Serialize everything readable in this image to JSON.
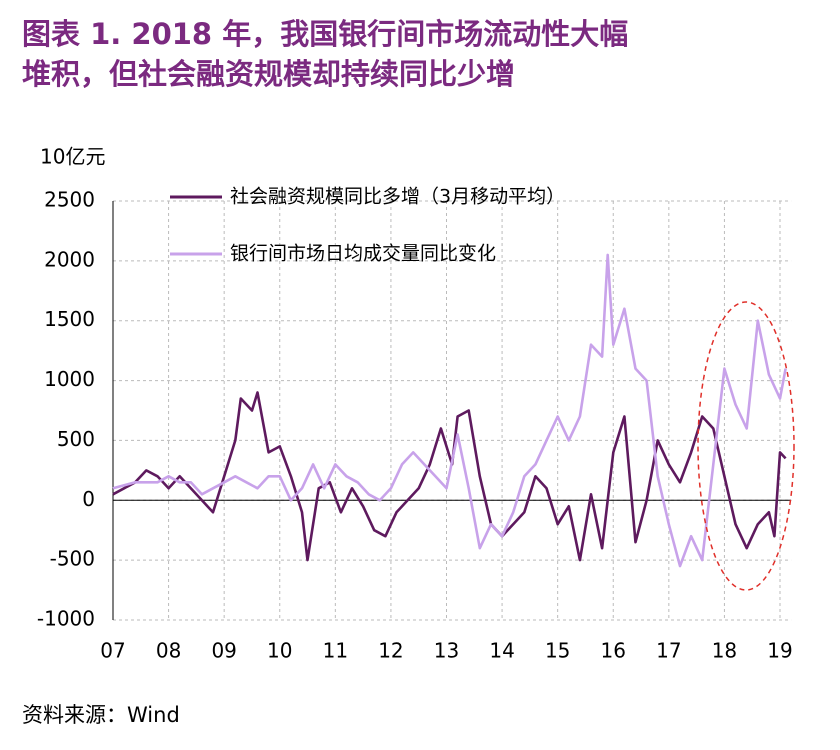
{
  "chart_data": {
    "type": "line",
    "title": [
      "图表 1.  2018 年，我国银行间市场流动性大幅",
      "堆积，但社会融资规模却持续同比少增"
    ],
    "y_unit": "10亿元",
    "source": "资料来源：Wind",
    "grid": true,
    "legend": "top-left",
    "xlim": [
      2007,
      2019.2
    ],
    "xticks": [
      {
        "value": 2007,
        "label": "07"
      },
      {
        "value": 2008,
        "label": "08"
      },
      {
        "value": 2009,
        "label": "09"
      },
      {
        "value": 2010,
        "label": "10"
      },
      {
        "value": 2011,
        "label": "11"
      },
      {
        "value": 2012,
        "label": "12"
      },
      {
        "value": 2013,
        "label": "13"
      },
      {
        "value": 2014,
        "label": "14"
      },
      {
        "value": 2015,
        "label": "15"
      },
      {
        "value": 2016,
        "label": "16"
      },
      {
        "value": 2017,
        "label": "17"
      },
      {
        "value": 2018,
        "label": "18"
      },
      {
        "value": 2019,
        "label": "19"
      }
    ],
    "ylim": [
      -1000,
      2500
    ],
    "yticks": [
      -1000,
      -500,
      0,
      500,
      1000,
      1500,
      2000,
      2500
    ],
    "series": [
      {
        "name": "社会融资规模同比多增（3月移动平均）",
        "color": "#5e1a5e",
        "x": [
          2007.0,
          2007.2,
          2007.4,
          2007.6,
          2007.8,
          2008.0,
          2008.2,
          2008.4,
          2008.6,
          2008.8,
          2009.0,
          2009.2,
          2009.3,
          2009.5,
          2009.6,
          2009.8,
          2010.0,
          2010.2,
          2010.4,
          2010.5,
          2010.7,
          2010.9,
          2011.1,
          2011.3,
          2011.5,
          2011.7,
          2011.9,
          2012.1,
          2012.3,
          2012.5,
          2012.7,
          2012.9,
          2013.1,
          2013.2,
          2013.4,
          2013.6,
          2013.8,
          2014.0,
          2014.2,
          2014.4,
          2014.6,
          2014.8,
          2015.0,
          2015.2,
          2015.4,
          2015.6,
          2015.8,
          2016.0,
          2016.2,
          2016.4,
          2016.6,
          2016.8,
          2017.0,
          2017.2,
          2017.4,
          2017.6,
          2017.8,
          2018.0,
          2018.2,
          2018.4,
          2018.6,
          2018.8,
          2018.9,
          2019.0,
          2019.1
        ],
        "values": [
          50,
          100,
          150,
          250,
          200,
          100,
          200,
          100,
          0,
          -100,
          200,
          500,
          850,
          750,
          900,
          400,
          450,
          200,
          -100,
          -500,
          100,
          150,
          -100,
          100,
          -50,
          -250,
          -300,
          -100,
          0,
          100,
          300,
          600,
          300,
          700,
          750,
          200,
          -200,
          -300,
          -200,
          -100,
          200,
          100,
          -200,
          -50,
          -500,
          50,
          -400,
          400,
          700,
          -350,
          0,
          500,
          300,
          150,
          400,
          700,
          600,
          200,
          -200,
          -400,
          -200,
          -100,
          -300,
          400,
          350
        ]
      },
      {
        "name": "银行间市场日均成交量同比变化",
        "color": "#c8a2ea",
        "x": [
          2007.0,
          2007.4,
          2007.8,
          2008.0,
          2008.2,
          2008.4,
          2008.6,
          2008.8,
          2009.0,
          2009.2,
          2009.4,
          2009.6,
          2009.8,
          2010.0,
          2010.2,
          2010.4,
          2010.6,
          2010.8,
          2011.0,
          2011.2,
          2011.4,
          2011.6,
          2011.8,
          2012.0,
          2012.2,
          2012.4,
          2012.6,
          2012.8,
          2013.0,
          2013.2,
          2013.4,
          2013.6,
          2013.8,
          2014.0,
          2014.2,
          2014.4,
          2014.6,
          2014.8,
          2015.0,
          2015.2,
          2015.4,
          2015.6,
          2015.8,
          2015.9,
          2016.0,
          2016.2,
          2016.4,
          2016.6,
          2016.8,
          2017.0,
          2017.2,
          2017.4,
          2017.6,
          2017.8,
          2018.0,
          2018.2,
          2018.4,
          2018.6,
          2018.8,
          2019.0,
          2019.1
        ],
        "values": [
          100,
          150,
          150,
          200,
          150,
          150,
          50,
          100,
          150,
          200,
          150,
          100,
          200,
          200,
          0,
          100,
          300,
          100,
          300,
          200,
          150,
          50,
          0,
          100,
          300,
          400,
          300,
          200,
          100,
          550,
          100,
          -400,
          -200,
          -300,
          -100,
          200,
          300,
          500,
          700,
          500,
          700,
          1300,
          1200,
          2050,
          1300,
          1600,
          1100,
          1000,
          200,
          -200,
          -550,
          -300,
          -500,
          300,
          1100,
          800,
          600,
          1500,
          1050,
          850,
          1100
        ]
      }
    ]
  }
}
